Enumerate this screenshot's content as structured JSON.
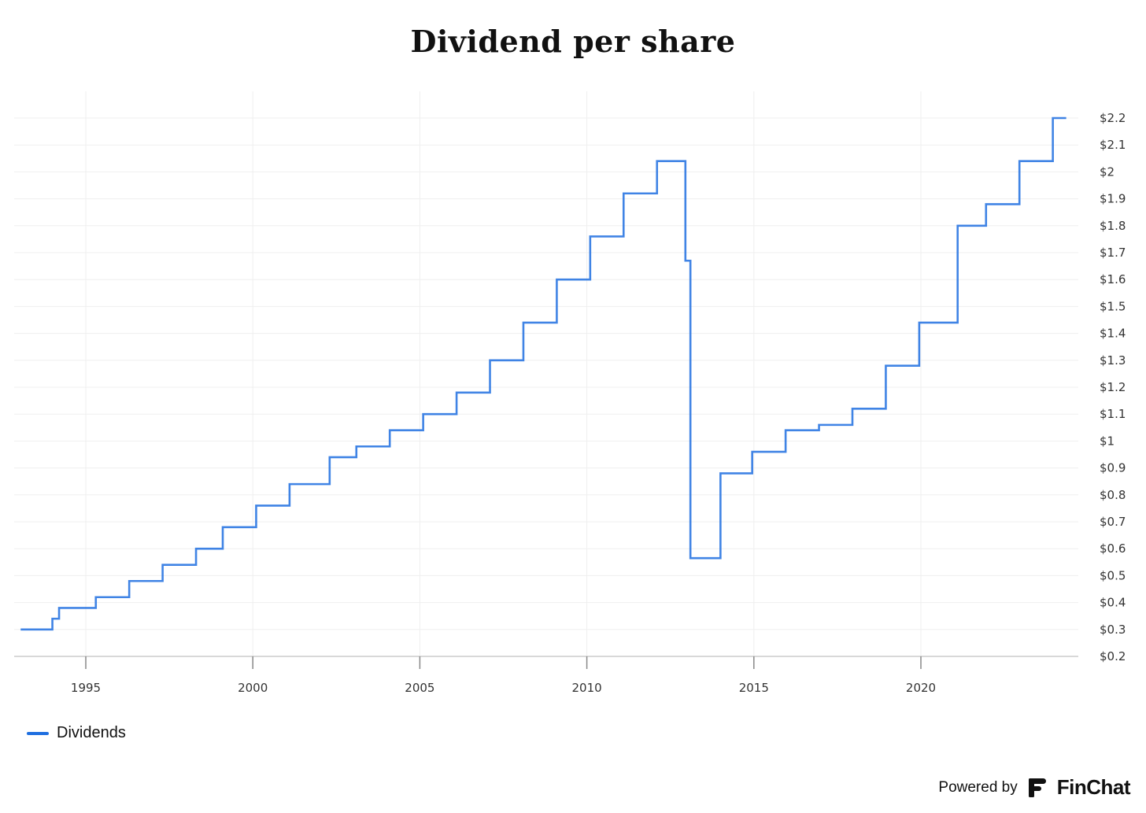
{
  "chart_data": {
    "type": "line",
    "title": "Dividend per share",
    "xlabel": "",
    "ylabel": "",
    "xlim": [
      1993.0,
      2024.5
    ],
    "ylim": [
      0.2,
      2.2
    ],
    "xticks": [
      1995,
      2000,
      2005,
      2010,
      2015,
      2020
    ],
    "x_tick_labels": [
      "1995",
      "2000",
      "2005",
      "2010",
      "2015",
      "2020"
    ],
    "yticks": [
      0.2,
      0.3,
      0.4,
      0.5,
      0.6,
      0.7,
      0.8,
      0.9,
      1.0,
      1.1,
      1.2,
      1.3,
      1.4,
      1.5,
      1.6,
      1.7,
      1.8,
      1.9,
      2.0,
      2.1,
      2.2
    ],
    "y_tick_labels": [
      "$0.2",
      "$0.3",
      "$0.4",
      "$0.5",
      "$0.6",
      "$0.7",
      "$0.8",
      "$0.9",
      "$1",
      "$1.1",
      "$1.2",
      "$1.3",
      "$1.4",
      "$1.5",
      "$1.6",
      "$1.7",
      "$1.8",
      "$1.9",
      "$2",
      "$2.1",
      "$2.2"
    ],
    "grid": true,
    "legend_position": "bottom-left",
    "step": true,
    "series": [
      {
        "name": "Dividends",
        "color": "#1f6fe0",
        "x": [
          1993.05,
          1994.0,
          1994.2,
          1995.3,
          1996.3,
          1997.3,
          1998.3,
          1999.1,
          2000.1,
          2001.1,
          2002.3,
          2003.1,
          2004.1,
          2005.1,
          2006.1,
          2007.1,
          2008.1,
          2009.1,
          2010.1,
          2011.1,
          2012.1,
          2012.95,
          2013.1,
          2014.0,
          2014.95,
          2015.95,
          2016.95,
          2017.95,
          2018.95,
          2019.95,
          2021.1,
          2021.95,
          2022.95,
          2023.95,
          2024.35
        ],
        "values": [
          0.3,
          0.34,
          0.38,
          0.42,
          0.48,
          0.54,
          0.6,
          0.68,
          0.76,
          0.84,
          0.94,
          0.98,
          1.04,
          1.1,
          1.18,
          1.3,
          1.44,
          1.6,
          1.76,
          1.92,
          2.04,
          1.67,
          0.565,
          0.88,
          0.96,
          1.04,
          1.06,
          1.12,
          1.28,
          1.44,
          1.8,
          1.88,
          2.04,
          2.2,
          2.2
        ]
      }
    ]
  },
  "legend": {
    "label": "Dividends",
    "color": "#1f6fe0"
  },
  "branding": {
    "powered_by": "Powered by",
    "name": "FinChat",
    "icon": "finchat-logo-icon"
  }
}
